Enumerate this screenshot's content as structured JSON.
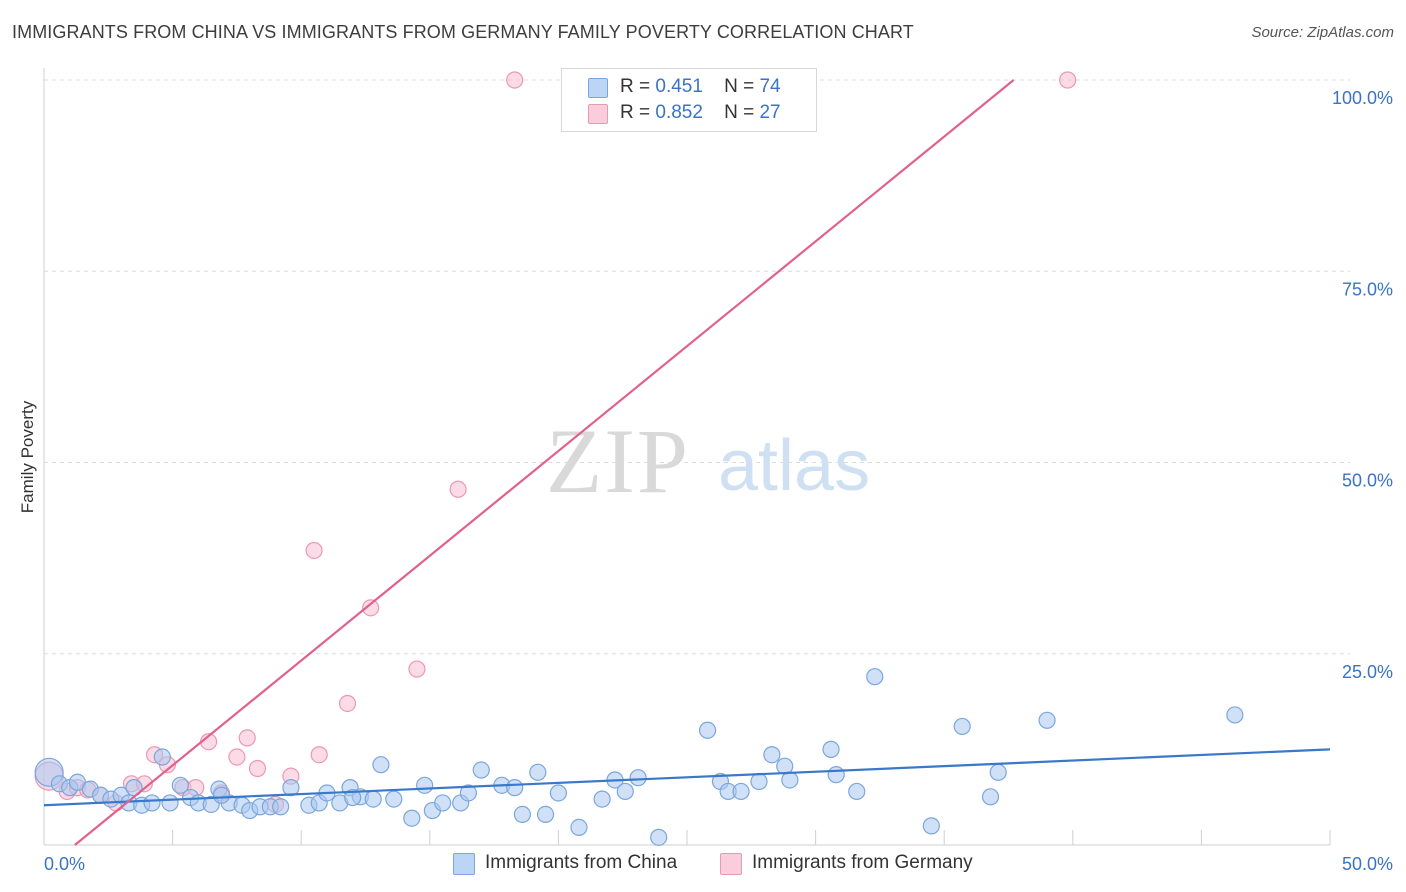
{
  "title": "IMMIGRANTS FROM CHINA VS IMMIGRANTS FROM GERMANY FAMILY POVERTY CORRELATION CHART",
  "source": "Source: ZipAtlas.com",
  "watermark": {
    "zip": "ZIP",
    "atlas": "atlas"
  },
  "legend": {
    "china": {
      "r_label": "R =",
      "r_value": "0.451",
      "n_label": "N =",
      "n_value": "74"
    },
    "germany": {
      "r_label": "R =",
      "r_value": "0.852",
      "n_label": "N =",
      "n_value": "27"
    }
  },
  "colors": {
    "china_fill": "#a9c8f0",
    "china_stroke": "#7aa6dd",
    "china_line": "#3a78c9",
    "germany_fill": "#f7bdd0",
    "germany_stroke": "#ec98b4",
    "germany_line": "#e0628c",
    "tick_label": "#3a73c4",
    "grid": "#dcdcdc"
  },
  "chart_data": {
    "type": "scatter",
    "title": "IMMIGRANTS FROM CHINA VS IMMIGRANTS FROM GERMANY FAMILY POVERTY CORRELATION CHART",
    "xlabel": "",
    "ylabel": "Family Poverty",
    "xlim": [
      0,
      50
    ],
    "ylim": [
      0,
      100
    ],
    "x_tick_labels": [
      "0.0%",
      "50.0%"
    ],
    "y_ticks": [
      25,
      50,
      75,
      100
    ],
    "y_tick_labels": [
      "25.0%",
      "50.0%",
      "75.0%",
      "100.0%"
    ],
    "grid": true,
    "legend_position": "top-center",
    "series": [
      {
        "name": "Immigrants from China",
        "r": 0.451,
        "n": 74,
        "trend": {
          "x": [
            0,
            50
          ],
          "y": [
            5.2,
            12.5
          ]
        },
        "points": [
          {
            "x": 0.2,
            "y": 9.5,
            "big": true
          },
          {
            "x": 0.6,
            "y": 8.0
          },
          {
            "x": 1.0,
            "y": 7.5
          },
          {
            "x": 1.3,
            "y": 8.2
          },
          {
            "x": 1.8,
            "y": 7.3
          },
          {
            "x": 2.2,
            "y": 6.5
          },
          {
            "x": 2.6,
            "y": 6.0
          },
          {
            "x": 3.0,
            "y": 6.5
          },
          {
            "x": 3.3,
            "y": 5.5
          },
          {
            "x": 3.5,
            "y": 7.5
          },
          {
            "x": 3.8,
            "y": 5.2
          },
          {
            "x": 4.2,
            "y": 5.5
          },
          {
            "x": 4.6,
            "y": 11.5
          },
          {
            "x": 4.9,
            "y": 5.5
          },
          {
            "x": 5.3,
            "y": 7.8
          },
          {
            "x": 5.7,
            "y": 6.2
          },
          {
            "x": 6.0,
            "y": 5.5
          },
          {
            "x": 6.5,
            "y": 5.3
          },
          {
            "x": 6.8,
            "y": 7.3
          },
          {
            "x": 7.2,
            "y": 5.5
          },
          {
            "x": 7.7,
            "y": 5.2
          },
          {
            "x": 8.0,
            "y": 4.5
          },
          {
            "x": 8.4,
            "y": 5.0
          },
          {
            "x": 8.8,
            "y": 5.0
          },
          {
            "x": 9.2,
            "y": 5.0
          },
          {
            "x": 9.6,
            "y": 7.5
          },
          {
            "x": 10.3,
            "y": 5.2
          },
          {
            "x": 10.7,
            "y": 5.5
          },
          {
            "x": 11.0,
            "y": 6.8
          },
          {
            "x": 11.5,
            "y": 5.5
          },
          {
            "x": 11.9,
            "y": 7.5
          },
          {
            "x": 12.3,
            "y": 6.3
          },
          {
            "x": 12.8,
            "y": 6.0
          },
          {
            "x": 13.1,
            "y": 10.5
          },
          {
            "x": 13.6,
            "y": 6.0
          },
          {
            "x": 14.3,
            "y": 3.5
          },
          {
            "x": 14.8,
            "y": 7.8
          },
          {
            "x": 15.1,
            "y": 4.5
          },
          {
            "x": 15.5,
            "y": 5.5
          },
          {
            "x": 16.2,
            "y": 5.5
          },
          {
            "x": 16.5,
            "y": 6.8
          },
          {
            "x": 17.0,
            "y": 9.8
          },
          {
            "x": 17.8,
            "y": 7.8
          },
          {
            "x": 18.3,
            "y": 7.5
          },
          {
            "x": 18.6,
            "y": 4.0
          },
          {
            "x": 19.2,
            "y": 9.5
          },
          {
            "x": 19.5,
            "y": 4.0
          },
          {
            "x": 20.0,
            "y": 6.8
          },
          {
            "x": 20.8,
            "y": 2.3
          },
          {
            "x": 21.7,
            "y": 6.0
          },
          {
            "x": 22.2,
            "y": 8.5
          },
          {
            "x": 22.6,
            "y": 7.0
          },
          {
            "x": 23.1,
            "y": 8.8
          },
          {
            "x": 23.9,
            "y": 1.0
          },
          {
            "x": 25.8,
            "y": 15.0
          },
          {
            "x": 26.3,
            "y": 8.3
          },
          {
            "x": 26.6,
            "y": 7.0
          },
          {
            "x": 27.1,
            "y": 7.0
          },
          {
            "x": 27.8,
            "y": 8.3
          },
          {
            "x": 28.3,
            "y": 11.8
          },
          {
            "x": 28.8,
            "y": 10.3
          },
          {
            "x": 29.0,
            "y": 8.5
          },
          {
            "x": 30.6,
            "y": 12.5
          },
          {
            "x": 30.8,
            "y": 9.2
          },
          {
            "x": 31.6,
            "y": 7.0
          },
          {
            "x": 32.3,
            "y": 22.0
          },
          {
            "x": 34.5,
            "y": 2.5
          },
          {
            "x": 35.7,
            "y": 15.5
          },
          {
            "x": 36.8,
            "y": 6.3
          },
          {
            "x": 37.1,
            "y": 9.5
          },
          {
            "x": 39.0,
            "y": 16.3
          },
          {
            "x": 46.3,
            "y": 17.0
          },
          {
            "x": 6.9,
            "y": 6.5
          },
          {
            "x": 12.0,
            "y": 6.2
          }
        ]
      },
      {
        "name": "Immigrants from Germany",
        "r": 0.852,
        "n": 27,
        "trend": {
          "x": [
            1.2,
            37.7
          ],
          "y": [
            0,
            100
          ]
        },
        "points": [
          {
            "x": 0.2,
            "y": 9.0,
            "big": true
          },
          {
            "x": 0.9,
            "y": 7.0
          },
          {
            "x": 1.3,
            "y": 7.5
          },
          {
            "x": 1.7,
            "y": 7.2
          },
          {
            "x": 2.2,
            "y": 6.5
          },
          {
            "x": 2.8,
            "y": 5.5
          },
          {
            "x": 3.4,
            "y": 8.0
          },
          {
            "x": 3.9,
            "y": 8.0
          },
          {
            "x": 4.3,
            "y": 11.8
          },
          {
            "x": 4.8,
            "y": 10.5
          },
          {
            "x": 5.4,
            "y": 7.5
          },
          {
            "x": 5.9,
            "y": 7.5
          },
          {
            "x": 6.4,
            "y": 13.5
          },
          {
            "x": 6.9,
            "y": 6.8
          },
          {
            "x": 7.5,
            "y": 11.5
          },
          {
            "x": 7.9,
            "y": 14.0
          },
          {
            "x": 8.3,
            "y": 10.0
          },
          {
            "x": 9.0,
            "y": 5.3
          },
          {
            "x": 9.6,
            "y": 9.0
          },
          {
            "x": 10.5,
            "y": 38.5
          },
          {
            "x": 10.7,
            "y": 11.8
          },
          {
            "x": 11.8,
            "y": 18.5
          },
          {
            "x": 12.7,
            "y": 31.0
          },
          {
            "x": 14.5,
            "y": 23.0
          },
          {
            "x": 16.1,
            "y": 46.5
          },
          {
            "x": 18.3,
            "y": 100
          },
          {
            "x": 39.8,
            "y": 100
          }
        ]
      }
    ]
  },
  "bottom_legend": {
    "china": "Immigrants from China",
    "germany": "Immigrants from Germany"
  }
}
